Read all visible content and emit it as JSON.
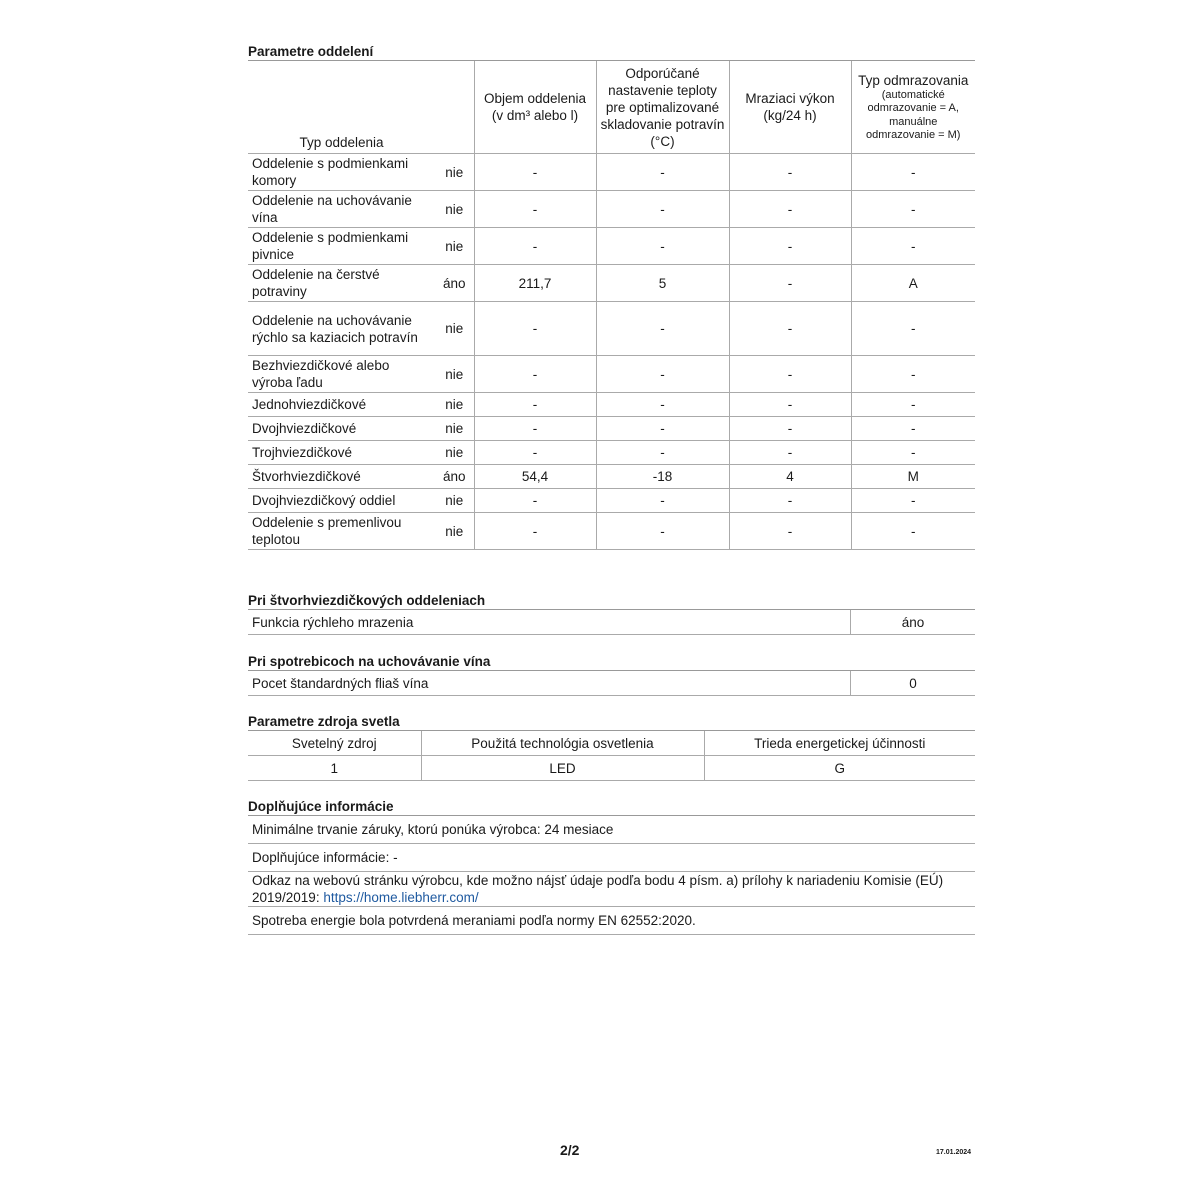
{
  "compartments": {
    "title": "Parametre oddelení",
    "headers": {
      "type": "Typ oddelenia",
      "volume": "Objem oddelenia (v dm³ alebo l)",
      "temp": "Odporúčané nastavenie teploty pre optimalizované skladovanie potravín (°C)",
      "freezing": "Mraziaci výkon (kg/24 h)",
      "defrost": "Typ odmrazovania",
      "defrost_note": "(automatické odmrazovanie = A, manuálne odmrazovanie = M)"
    },
    "rows": [
      {
        "type": "Oddelenie s podmienkami komory",
        "present": "nie",
        "volume": "-",
        "temp": "-",
        "freezing": "-",
        "defrost": "-"
      },
      {
        "type": "Oddelenie na uchovávanie vína",
        "present": "nie",
        "volume": "-",
        "temp": "-",
        "freezing": "-",
        "defrost": "-"
      },
      {
        "type": "Oddelenie s podmienkami pivnice",
        "present": "nie",
        "volume": "-",
        "temp": "-",
        "freezing": "-",
        "defrost": "-"
      },
      {
        "type": "Oddelenie na čerstvé potraviny",
        "present": "áno",
        "volume": "211,7",
        "temp": "5",
        "freezing": "-",
        "defrost": "A"
      },
      {
        "type": "Oddelenie na uchovávanie rýchlo sa kaziacich potravín",
        "present": "nie",
        "volume": "-",
        "temp": "-",
        "freezing": "-",
        "defrost": "-"
      },
      {
        "type": "Bezhviezdičkové alebo výroba ľadu",
        "present": "nie",
        "volume": "-",
        "temp": "-",
        "freezing": "-",
        "defrost": "-"
      },
      {
        "type": "Jednohviezdičkové",
        "present": "nie",
        "volume": "-",
        "temp": "-",
        "freezing": "-",
        "defrost": "-"
      },
      {
        "type": "Dvojhviezdičkové",
        "present": "nie",
        "volume": "-",
        "temp": "-",
        "freezing": "-",
        "defrost": "-"
      },
      {
        "type": "Trojhviezdičkové",
        "present": "nie",
        "volume": "-",
        "temp": "-",
        "freezing": "-",
        "defrost": "-"
      },
      {
        "type": "Štvorhviezdičkové",
        "present": "áno",
        "volume": "54,4",
        "temp": "-18",
        "freezing": "4",
        "defrost": "M"
      },
      {
        "type": "Dvojhviezdičkový oddiel",
        "present": "nie",
        "volume": "-",
        "temp": "-",
        "freezing": "-",
        "defrost": "-"
      },
      {
        "type": "Oddelenie s premenlivou teplotou",
        "present": "nie",
        "volume": "-",
        "temp": "-",
        "freezing": "-",
        "defrost": "-"
      }
    ]
  },
  "four_star": {
    "title": "Pri štvorhviezdičkových oddeleniach",
    "label": "Funkcia rýchleho mrazenia",
    "value": "áno"
  },
  "wine": {
    "title": "Pri spotrebicoch na uchovávanie vína",
    "label": "Pocet štandardných fliaš vína",
    "value": "0"
  },
  "light": {
    "title": "Parametre zdroja svetla",
    "headers": [
      "Svetelný zdroj",
      "Použitá technológia osvetlenia",
      "Trieda energetickej účinnosti"
    ],
    "values": [
      "1",
      "LED",
      "G"
    ]
  },
  "extra": {
    "title": "Doplňujúce informácie",
    "warranty": "Minimálne trvanie záruky, ktorú ponúka výrobca: 24 mesiace",
    "additional": "Doplňujúce informácie: -",
    "link_text": "Odkaz na webovú stránku výrobcu, kde možno nájsť údaje podľa bodu 4 písm. a) prílohy k nariadeniu Komisie (EÚ) 2019/2019: ",
    "link_url": "https://home.liebherr.com/",
    "energy": "Spotreba energie bola potvrdená meraniami podľa normy EN 62552:2020."
  },
  "footer": {
    "page": "2/2",
    "date": "17.01.2024"
  }
}
